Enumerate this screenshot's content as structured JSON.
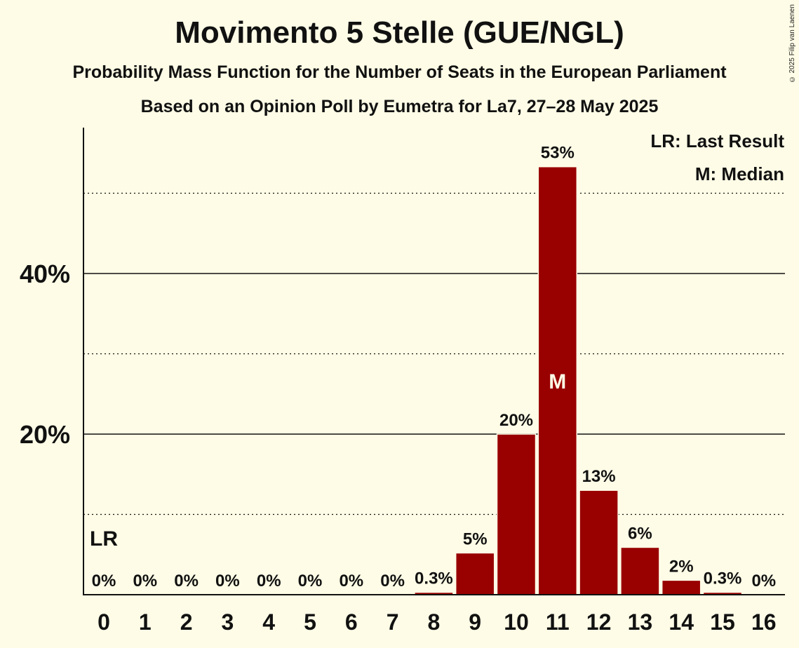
{
  "chart_data": {
    "type": "bar",
    "title": "Movimento 5 Stelle (GUE/NGL)",
    "subtitle": "Probability Mass Function for the Number of Seats in the European Parliament",
    "subtitle2": "Based on an Opinion Poll by Eumetra for La7, 27–28 May 2025",
    "copyright": "© 2025 Filip van Laenen",
    "xlabel": "",
    "ylabel": "",
    "categories": [
      "0",
      "1",
      "2",
      "3",
      "4",
      "5",
      "6",
      "7",
      "8",
      "9",
      "10",
      "11",
      "12",
      "13",
      "14",
      "15",
      "16"
    ],
    "values": [
      0,
      0,
      0,
      0,
      0,
      0,
      0,
      0,
      0.3,
      5.2,
      20,
      53.3,
      13,
      5.9,
      1.8,
      0.3,
      0
    ],
    "value_labels": [
      "0%",
      "0%",
      "0%",
      "0%",
      "0%",
      "0%",
      "0%",
      "0%",
      "0.3%",
      "5%",
      "20%",
      "53%",
      "13%",
      "6%",
      "2%",
      "0.3%",
      "0%"
    ],
    "ylim": [
      0,
      58
    ],
    "yticks": [
      20,
      40
    ],
    "ytick_labels": [
      "20%",
      "40%"
    ],
    "minor_gridlines": [
      10,
      30,
      50
    ],
    "last_result_seats": "0",
    "last_result_marker": "LR",
    "median_seats": "11",
    "median_marker": "M",
    "legend": {
      "last_result": "LR: Last Result",
      "median": "M: Median",
      "position": "top-right"
    },
    "colors": {
      "bar": "#990000",
      "background": "#fefce6",
      "text": "#111111",
      "median_text": "#fefce6"
    }
  }
}
